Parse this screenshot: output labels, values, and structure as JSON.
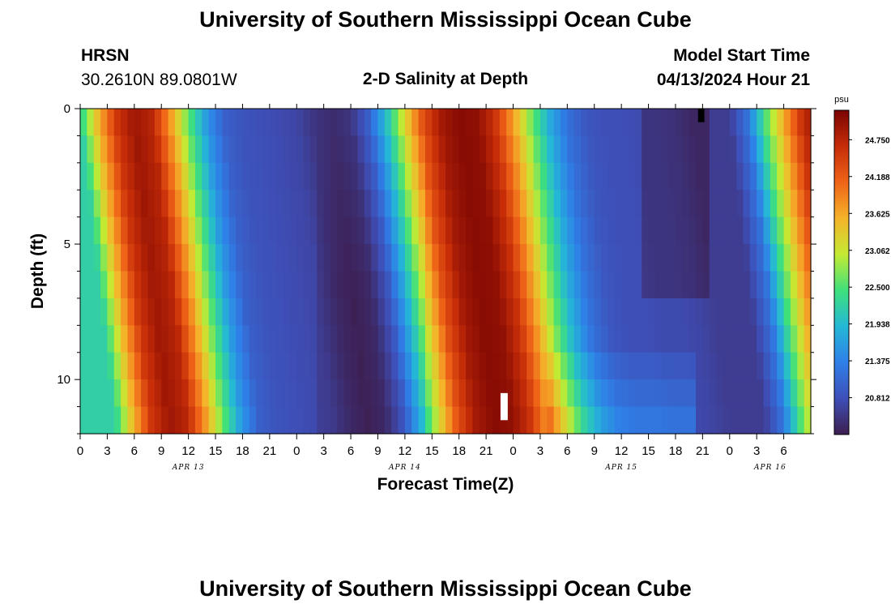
{
  "header": {
    "title": "University of Southern Mississippi Ocean Cube",
    "station": "HRSN",
    "coords": "30.2610N  89.0801W",
    "plot_title": "2-D Salinity at Depth",
    "model_start_label": "Model Start Time",
    "model_start_value": "04/13/2024 Hour 21"
  },
  "footer": {
    "title": "University of Southern Mississippi Ocean Cube"
  },
  "colors": {
    "ramp": [
      "#3d1e4f",
      "#3e4fb8",
      "#2f7fe8",
      "#24b8d6",
      "#3fe07c",
      "#c4ea33",
      "#f5b32a",
      "#ef6418",
      "#c62d08",
      "#7a0403"
    ]
  },
  "chart_data": {
    "type": "heatmap",
    "title": "2-D Salinity at Depth",
    "xlabel": "Forecast Time(Z)",
    "ylabel": "Depth (ft)",
    "xlim": [
      0,
      81
    ],
    "ylim": [
      0,
      12
    ],
    "x_unit": "hours since 04/13 00Z",
    "xtick_labels": [
      "0",
      "3",
      "6",
      "9",
      "12",
      "15",
      "18",
      "21",
      "0",
      "3",
      "6",
      "9",
      "12",
      "15",
      "18",
      "21",
      "0",
      "3",
      "6",
      "9",
      "12",
      "15",
      "18",
      "21",
      "0",
      "3",
      "6"
    ],
    "ytick_labels": [
      "0",
      "5",
      "10"
    ],
    "ytick_values": [
      0,
      5,
      10
    ],
    "date_labels": [
      {
        "text": "APR 13",
        "hour": 12
      },
      {
        "text": "APR 14",
        "hour": 36
      },
      {
        "text": "APR 15",
        "hour": 60
      },
      {
        "text": "APR 16",
        "hour": 76.5
      }
    ],
    "colorbar": {
      "unit": "psu",
      "min": 20.25,
      "max": 25.2,
      "labels": [
        "24.750",
        "24.188",
        "23.625",
        "23.062",
        "22.500",
        "21.938",
        "21.375",
        "20.812"
      ]
    },
    "depths_ft": [
      0,
      1,
      2,
      3,
      4,
      5,
      6,
      7,
      8,
      9,
      10,
      11
    ],
    "surface_profile": {
      "hours": [
        0,
        2,
        4,
        6,
        8,
        10,
        12,
        14,
        16,
        18,
        20,
        22,
        24,
        26,
        28,
        30,
        32,
        34,
        36,
        38,
        40,
        42,
        44,
        46,
        48,
        50,
        52,
        54,
        56,
        58,
        60,
        62,
        64,
        66,
        68,
        70,
        72,
        74,
        76,
        78,
        80,
        81
      ],
      "psu": [
        22.2,
        23.5,
        24.55,
        24.95,
        24.75,
        23.75,
        22.6,
        21.6,
        21.0,
        20.85,
        20.8,
        20.75,
        20.7,
        20.5,
        20.4,
        20.5,
        21.0,
        22.0,
        23.2,
        24.3,
        24.9,
        25.1,
        25.05,
        24.6,
        23.7,
        22.7,
        21.8,
        21.2,
        20.9,
        20.8,
        20.8,
        20.75,
        20.75,
        20.7,
        20.6,
        20.6,
        20.6,
        21.2,
        22.5,
        23.6,
        24.6,
        24.85
      ]
    },
    "gap_markers": [
      {
        "hour_start": 68.5,
        "hour_end": 69.2,
        "depth_start": 0,
        "depth_end": 0.5,
        "color": "#000000"
      },
      {
        "hour_start": 46.6,
        "hour_end": 47.4,
        "depth_start": 10.5,
        "depth_end": 11.5,
        "color": "#ffffff"
      }
    ]
  }
}
